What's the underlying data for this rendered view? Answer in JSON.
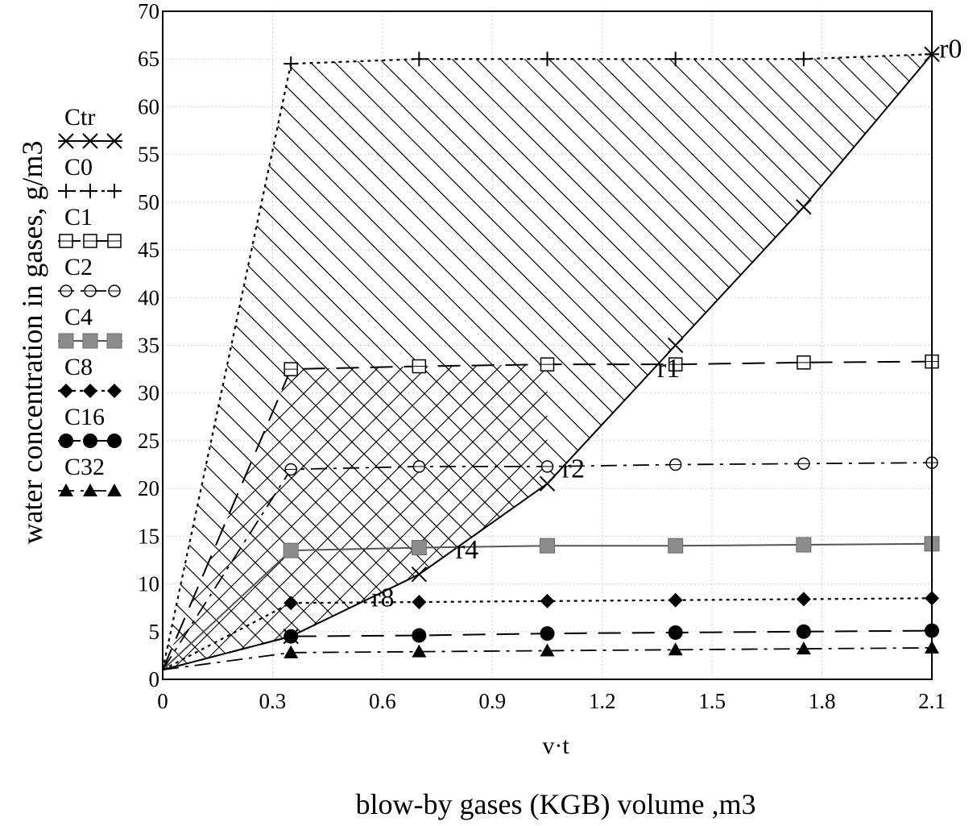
{
  "chart_data": {
    "type": "line",
    "xlabel": "v·t",
    "xlabel2": "blow-by gases (KGB) volume ,m3",
    "ylabel": "water concentration in gases,  g/m3",
    "xlim": [
      0,
      2.1
    ],
    "ylim": [
      0,
      70
    ],
    "x_ticks": [
      "0",
      "0.3",
      "0.6",
      "0.9",
      "1.2",
      "1.5",
      "1.8",
      "2.1"
    ],
    "x_tick_values": [
      0,
      0.3,
      0.6,
      0.9,
      1.2,
      1.5,
      1.8,
      2.1
    ],
    "y_ticks": [
      "0",
      "5",
      "10",
      "15",
      "20",
      "25",
      "30",
      "35",
      "40",
      "45",
      "50",
      "55",
      "60",
      "65",
      "70"
    ],
    "y_tick_values": [
      0,
      5,
      10,
      15,
      20,
      25,
      30,
      35,
      40,
      45,
      50,
      55,
      60,
      65,
      70
    ],
    "grid": true,
    "legend_position": "left, outside plot",
    "hatching": "diagonal hatch in region between C0 and Ctr; cross-hatch in region between C1 and Ctr near origin",
    "series": [
      {
        "name": "Ctr",
        "marker": "x",
        "line": "solid",
        "x": [
          0,
          0.35,
          0.7,
          1.05,
          1.4,
          1.75,
          2.1
        ],
        "y": [
          1,
          4.5,
          11,
          20.5,
          35,
          49.5,
          65.5
        ]
      },
      {
        "name": "C0",
        "marker": "+",
        "line": "dotted",
        "x": [
          0,
          0.35,
          0.7,
          1.05,
          1.4,
          1.75,
          2.1
        ],
        "y": [
          1,
          64.5,
          65,
          65,
          65,
          65,
          65.5
        ]
      },
      {
        "name": "C1",
        "marker": "open-square",
        "line": "long-dash",
        "x": [
          0,
          0.35,
          0.7,
          1.05,
          1.4,
          1.75,
          2.1
        ],
        "y": [
          1,
          32.5,
          32.8,
          33,
          33,
          33.2,
          33.3
        ]
      },
      {
        "name": "C2",
        "marker": "open-circle",
        "line": "dash-dot",
        "x": [
          0,
          0.35,
          0.7,
          1.05,
          1.4,
          1.75,
          2.1
        ],
        "y": [
          1,
          22,
          22.3,
          22.3,
          22.5,
          22.6,
          22.7
        ]
      },
      {
        "name": "C4",
        "marker": "grey-square",
        "line": "solid-grey",
        "x": [
          0,
          0.35,
          0.7,
          1.05,
          1.4,
          1.75,
          2.1
        ],
        "y": [
          1,
          13.5,
          13.8,
          14,
          14,
          14.1,
          14.2
        ]
      },
      {
        "name": "C8",
        "marker": "filled-diamond",
        "line": "dotted",
        "x": [
          0,
          0.35,
          0.7,
          1.05,
          1.4,
          1.75,
          2.1
        ],
        "y": [
          1,
          8,
          8.1,
          8.2,
          8.3,
          8.4,
          8.5
        ]
      },
      {
        "name": "C16",
        "marker": "filled-circle",
        "line": "long-dash",
        "x": [
          0,
          0.35,
          0.7,
          1.05,
          1.4,
          1.75,
          2.1
        ],
        "y": [
          1,
          4.5,
          4.6,
          4.8,
          4.9,
          5.0,
          5.1
        ]
      },
      {
        "name": "C32",
        "marker": "filled-triangle",
        "line": "dash-dot",
        "x": [
          0,
          0.35,
          0.7,
          1.05,
          1.4,
          1.75,
          2.1
        ],
        "y": [
          1,
          2.8,
          2.9,
          3.0,
          3.1,
          3.2,
          3.3
        ]
      }
    ],
    "annotations": [
      {
        "text": "r0",
        "x": 2.12,
        "y": 66
      },
      {
        "text": "r1",
        "x": 1.35,
        "y": 32.5
      },
      {
        "text": "r2",
        "x": 1.09,
        "y": 22
      },
      {
        "text": "r4",
        "x": 0.8,
        "y": 13.5
      },
      {
        "text": "r8",
        "x": 0.57,
        "y": 8.5
      }
    ]
  }
}
